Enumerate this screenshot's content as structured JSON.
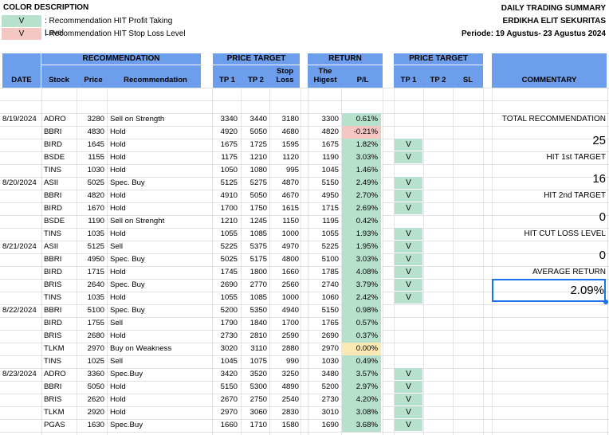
{
  "legend": {
    "title": "COLOR DESCRIPTION",
    "items": [
      {
        "mark": "V",
        "text": ": Recommendation HIT Profit Taking Level",
        "color": "#b7e1cd"
      },
      {
        "mark": "V",
        "text": ": Recommendation HIT Stop Loss Level",
        "color": "#f4c7c3"
      }
    ]
  },
  "summary": {
    "title": "DAILY TRADING SUMMARY",
    "company": "ERDIKHA ELIT SEKURITAS",
    "period": "Periode:  19 Agustus- 23 Agustus 2024"
  },
  "headers": {
    "date": "DATE",
    "recommendation_group": "RECOMMENDATION",
    "stock": "Stock",
    "price": "Price",
    "recommendation": "Recommendation",
    "price_target_group": "PRICE TARGET",
    "tp1": "TP 1",
    "tp2": "TP 2",
    "stop_loss_line1": "Stop",
    "stop_loss_line2": "Loss",
    "return_group": "RETURN",
    "highest_line1": "The",
    "highest_line2": "Higest",
    "pl": "P/L",
    "hit_group": "PRICE TARGET",
    "hit_tp1": "TP 1",
    "hit_tp2": "TP 2",
    "hit_sl": "SL",
    "commentary": "COMMENTARY"
  },
  "rows": [
    {
      "date": "8/19/2024",
      "stock": "ADRO",
      "price": "3280",
      "rec": "Sell on Strength",
      "tp1": "3340",
      "tp2": "3440",
      "sl": "3180",
      "high": "3300",
      "pl": "0.61%",
      "pl_color": "green",
      "hit_tp1": "",
      "hit_tp2": "",
      "hit_sl": ""
    },
    {
      "date": "",
      "stock": "BBRI",
      "price": "4830",
      "rec": "Hold",
      "tp1": "4920",
      "tp2": "5050",
      "sl": "4680",
      "high": "4820",
      "pl": "-0.21%",
      "pl_color": "red",
      "hit_tp1": "",
      "hit_tp2": "",
      "hit_sl": ""
    },
    {
      "date": "",
      "stock": "BIRD",
      "price": "1645",
      "rec": "Hold",
      "tp1": "1675",
      "tp2": "1725",
      "sl": "1595",
      "high": "1675",
      "pl": "1.82%",
      "pl_color": "green",
      "hit_tp1": "V",
      "hit_tp2": "",
      "hit_sl": ""
    },
    {
      "date": "",
      "stock": "BSDE",
      "price": "1155",
      "rec": "Hold",
      "tp1": "1175",
      "tp2": "1210",
      "sl": "1120",
      "high": "1190",
      "pl": "3.03%",
      "pl_color": "green",
      "hit_tp1": "V",
      "hit_tp2": "",
      "hit_sl": ""
    },
    {
      "date": "",
      "stock": "TINS",
      "price": "1030",
      "rec": "Hold",
      "tp1": "1050",
      "tp2": "1080",
      "sl": "995",
      "high": "1045",
      "pl": "1.46%",
      "pl_color": "green",
      "hit_tp1": "",
      "hit_tp2": "",
      "hit_sl": ""
    },
    {
      "date": "8/20/2024",
      "stock": "ASII",
      "price": "5025",
      "rec": "Spec. Buy",
      "tp1": "5125",
      "tp2": "5275",
      "sl": "4870",
      "high": "5150",
      "pl": "2.49%",
      "pl_color": "green",
      "hit_tp1": "V",
      "hit_tp2": "",
      "hit_sl": ""
    },
    {
      "date": "",
      "stock": "BBRI",
      "price": "4820",
      "rec": "Hold",
      "tp1": "4910",
      "tp2": "5050",
      "sl": "4670",
      "high": "4950",
      "pl": "2.70%",
      "pl_color": "green",
      "hit_tp1": "V",
      "hit_tp2": "",
      "hit_sl": ""
    },
    {
      "date": "",
      "stock": "BIRD",
      "price": "1670",
      "rec": "Hold",
      "tp1": "1700",
      "tp2": "1750",
      "sl": "1615",
      "high": "1715",
      "pl": "2.69%",
      "pl_color": "green",
      "hit_tp1": "V",
      "hit_tp2": "",
      "hit_sl": ""
    },
    {
      "date": "",
      "stock": "BSDE",
      "price": "1190",
      "rec": "Sell on Strenght",
      "tp1": "1210",
      "tp2": "1245",
      "sl": "1150",
      "high": "1195",
      "pl": "0.42%",
      "pl_color": "green",
      "hit_tp1": "",
      "hit_tp2": "",
      "hit_sl": ""
    },
    {
      "date": "",
      "stock": "TINS",
      "price": "1035",
      "rec": "Hold",
      "tp1": "1055",
      "tp2": "1085",
      "sl": "1000",
      "high": "1055",
      "pl": "1.93%",
      "pl_color": "green",
      "hit_tp1": "V",
      "hit_tp2": "",
      "hit_sl": ""
    },
    {
      "date": "8/21/2024",
      "stock": "ASII",
      "price": "5125",
      "rec": "Sell",
      "tp1": "5225",
      "tp2": "5375",
      "sl": "4970",
      "high": "5225",
      "pl": "1.95%",
      "pl_color": "green",
      "hit_tp1": "V",
      "hit_tp2": "",
      "hit_sl": ""
    },
    {
      "date": "",
      "stock": "BBRI",
      "price": "4950",
      "rec": "Spec. Buy",
      "tp1": "5025",
      "tp2": "5175",
      "sl": "4800",
      "high": "5100",
      "pl": "3.03%",
      "pl_color": "green",
      "hit_tp1": "V",
      "hit_tp2": "",
      "hit_sl": ""
    },
    {
      "date": "",
      "stock": "BIRD",
      "price": "1715",
      "rec": "Hold",
      "tp1": "1745",
      "tp2": "1800",
      "sl": "1660",
      "high": "1785",
      "pl": "4.08%",
      "pl_color": "green",
      "hit_tp1": "V",
      "hit_tp2": "",
      "hit_sl": ""
    },
    {
      "date": "",
      "stock": "BRIS",
      "price": "2640",
      "rec": "Spec. Buy",
      "tp1": "2690",
      "tp2": "2770",
      "sl": "2560",
      "high": "2740",
      "pl": "3.79%",
      "pl_color": "green",
      "hit_tp1": "V",
      "hit_tp2": "",
      "hit_sl": ""
    },
    {
      "date": "",
      "stock": "TINS",
      "price": "1035",
      "rec": "Hold",
      "tp1": "1055",
      "tp2": "1085",
      "sl": "1000",
      "high": "1060",
      "pl": "2.42%",
      "pl_color": "green",
      "hit_tp1": "V",
      "hit_tp2": "",
      "hit_sl": ""
    },
    {
      "date": "8/22/2024",
      "stock": "BBRI",
      "price": "5100",
      "rec": "Spec. Buy",
      "tp1": "5200",
      "tp2": "5350",
      "sl": "4940",
      "high": "5150",
      "pl": "0.98%",
      "pl_color": "green",
      "hit_tp1": "",
      "hit_tp2": "",
      "hit_sl": ""
    },
    {
      "date": "",
      "stock": "BIRD",
      "price": "1755",
      "rec": "Sell",
      "tp1": "1790",
      "tp2": "1840",
      "sl": "1700",
      "high": "1765",
      "pl": "0.57%",
      "pl_color": "green",
      "hit_tp1": "",
      "hit_tp2": "",
      "hit_sl": ""
    },
    {
      "date": "",
      "stock": "BRIS",
      "price": "2680",
      "rec": "Hold",
      "tp1": "2730",
      "tp2": "2810",
      "sl": "2590",
      "high": "2690",
      "pl": "0.37%",
      "pl_color": "green",
      "hit_tp1": "",
      "hit_tp2": "",
      "hit_sl": ""
    },
    {
      "date": "",
      "stock": "TLKM",
      "price": "2970",
      "rec": "Buy on Weakness",
      "tp1": "3020",
      "tp2": "3110",
      "sl": "2880",
      "high": "2970",
      "pl": "0.00%",
      "pl_color": "yellow",
      "hit_tp1": "",
      "hit_tp2": "",
      "hit_sl": ""
    },
    {
      "date": "",
      "stock": "TINS",
      "price": "1025",
      "rec": "Sell",
      "tp1": "1045",
      "tp2": "1075",
      "sl": "990",
      "high": "1030",
      "pl": "0.49%",
      "pl_color": "green",
      "hit_tp1": "",
      "hit_tp2": "",
      "hit_sl": ""
    },
    {
      "date": "8/23/2024",
      "stock": "ADRO",
      "price": "3360",
      "rec": "Spec.Buy",
      "tp1": "3420",
      "tp2": "3520",
      "sl": "3250",
      "high": "3480",
      "pl": "3.57%",
      "pl_color": "green",
      "hit_tp1": "V",
      "hit_tp2": "",
      "hit_sl": ""
    },
    {
      "date": "",
      "stock": "BBRI",
      "price": "5050",
      "rec": "Hold",
      "tp1": "5150",
      "tp2": "5300",
      "sl": "4890",
      "high": "5200",
      "pl": "2.97%",
      "pl_color": "green",
      "hit_tp1": "V",
      "hit_tp2": "",
      "hit_sl": ""
    },
    {
      "date": "",
      "stock": "BRIS",
      "price": "2620",
      "rec": "Hold",
      "tp1": "2670",
      "tp2": "2750",
      "sl": "2540",
      "high": "2730",
      "pl": "4.20%",
      "pl_color": "green",
      "hit_tp1": "V",
      "hit_tp2": "",
      "hit_sl": ""
    },
    {
      "date": "",
      "stock": "TLKM",
      "price": "2920",
      "rec": "Hold",
      "tp1": "2970",
      "tp2": "3060",
      "sl": "2830",
      "high": "3010",
      "pl": "3.08%",
      "pl_color": "green",
      "hit_tp1": "V",
      "hit_tp2": "",
      "hit_sl": ""
    },
    {
      "date": "",
      "stock": "PGAS",
      "price": "1630",
      "rec": "Spec.Buy",
      "tp1": "1660",
      "tp2": "1710",
      "sl": "1580",
      "high": "1690",
      "pl": "3.68%",
      "pl_color": "green",
      "hit_tp1": "V",
      "hit_tp2": "",
      "hit_sl": ""
    }
  ],
  "commentary": {
    "total_label": "TOTAL RECOMMENDATION",
    "total_value": "25",
    "hit1_label": "HIT 1st TARGET",
    "hit1_value": "16",
    "hit2_label": "HIT 2nd TARGET",
    "hit2_value": "0",
    "cut_label": "HIT CUT LOSS LEVEL",
    "cut_value": "0",
    "avg_label": "AVERAGE RETURN",
    "avg_value": "2.09%"
  },
  "colors": {
    "header": "#6d9eeb",
    "profit": "#b7e1cd",
    "loss": "#f4c7c3",
    "neutral": "#fce8b2",
    "selection": "#1a73e8"
  }
}
